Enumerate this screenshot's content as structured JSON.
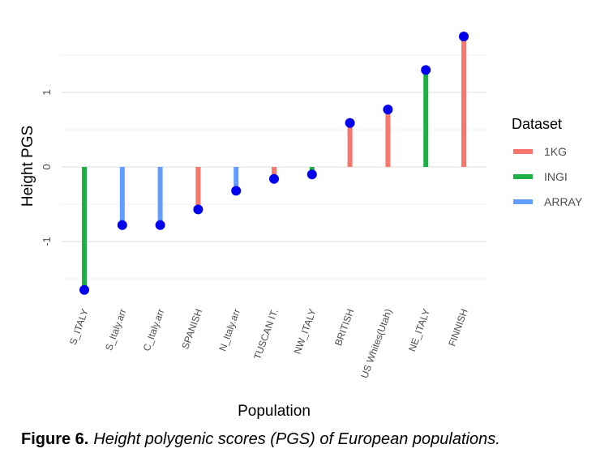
{
  "chart_data": {
    "type": "lollipop",
    "xlabel": "Population",
    "ylabel": "Height PGS",
    "ylim": [
      -1.8,
      1.9
    ],
    "y_ticks": [
      -1,
      0,
      1
    ],
    "grid": true,
    "legend": {
      "title": "Dataset",
      "position": "right",
      "entries": [
        {
          "name": "1KG",
          "color": "#f8766d"
        },
        {
          "name": "INGI",
          "color": "#1db043"
        },
        {
          "name": "ARRAY",
          "color": "#619cff"
        }
      ]
    },
    "point_color": "#0000ee",
    "categories": [
      "S_ITALY",
      "S_Italy.arr",
      "C_Italy.arr",
      "SPANISH",
      "N_Italy.arr",
      "TUSCAN IT.",
      "NW_ITALY",
      "BRITISH",
      "US Whites(Utah)",
      "NE_ITALY",
      "FINNISH"
    ],
    "values": [
      -1.65,
      -0.78,
      -0.78,
      -0.57,
      -0.32,
      -0.16,
      -0.1,
      0.59,
      0.77,
      1.3,
      1.75
    ],
    "datasets": [
      "INGI",
      "ARRAY",
      "ARRAY",
      "1KG",
      "ARRAY",
      "1KG",
      "INGI",
      "1KG",
      "1KG",
      "INGI",
      "1KG"
    ]
  },
  "caption": {
    "label": "Figure 6.",
    "text": "Height polygenic scores (PGS) of European populations."
  }
}
